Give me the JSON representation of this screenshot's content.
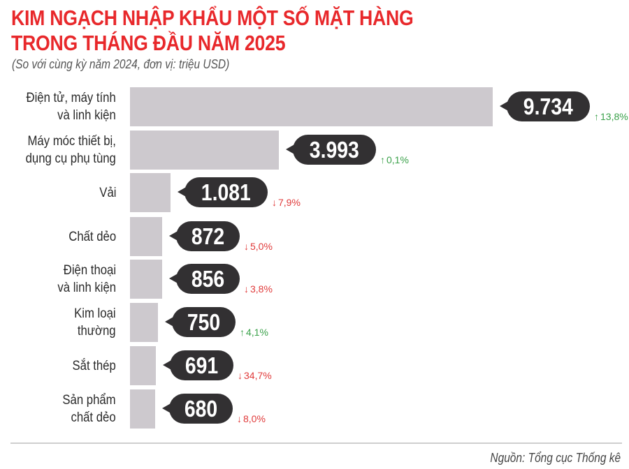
{
  "header": {
    "title_line1": "KIM NGẠCH NHẬP KHẨU MỘT SỐ MẶT HÀNG",
    "title_line2": "TRONG THÁNG ĐẦU NĂM 2025",
    "subtitle": "(So với cùng kỳ năm 2024, đơn vị: triệu USD)"
  },
  "footer": {
    "source": "Nguồn: Tổng cục Thống kê"
  },
  "colors": {
    "title": "#e8282b",
    "bar": "#cdc9ce",
    "bubble": "#323032",
    "up": "#3aa14a",
    "down": "#e03a3a"
  },
  "rows": [
    {
      "label": "Điện tử, máy tính\nvà linh kiện",
      "value": "9.734",
      "change": "13,8%",
      "direction": "up"
    },
    {
      "label": "Máy móc thiết bị,\ndụng cụ phụ tùng",
      "value": "3.993",
      "change": "0,1%",
      "direction": "up"
    },
    {
      "label": "Vải",
      "value": "1.081",
      "change": "7,9%",
      "direction": "down"
    },
    {
      "label": "Chất dẻo",
      "value": "872",
      "change": "5,0%",
      "direction": "down"
    },
    {
      "label": "Điện thoại\nvà linh kiện",
      "value": "856",
      "change": "3,8%",
      "direction": "down"
    },
    {
      "label": "Kim loại\nthường",
      "value": "750",
      "change": "4,1%",
      "direction": "up"
    },
    {
      "label": "Sắt thép",
      "value": "691",
      "change": "34,7%",
      "direction": "down"
    },
    {
      "label": "Sản phẩm\nchất dẻo",
      "value": "680",
      "change": "8,0%",
      "direction": "down"
    }
  ],
  "chart_data": {
    "type": "bar",
    "orientation": "horizontal",
    "title": "KIM NGẠCH NHẬP KHẨU MỘT SỐ MẶT HÀNG TRONG THÁNG ĐẦU NĂM 2025",
    "subtitle": "(So với cùng kỳ năm 2024, đơn vị: triệu USD)",
    "xlabel": "",
    "ylabel": "",
    "categories": [
      "Điện tử, máy tính và linh kiện",
      "Máy móc thiết bị, dụng cụ phụ tùng",
      "Vải",
      "Chất dẻo",
      "Điện thoại và linh kiện",
      "Kim loại thường",
      "Sắt thép",
      "Sản phẩm chất dẻo"
    ],
    "values": [
      9734,
      3993,
      1081,
      872,
      856,
      750,
      691,
      680
    ],
    "value_labels": [
      "9.734",
      "3.993",
      "1.081",
      "872",
      "856",
      "750",
      "691",
      "680"
    ],
    "yoy_change_percent": [
      13.8,
      0.1,
      -7.9,
      -5.0,
      -3.8,
      4.1,
      -34.7,
      -8.0
    ],
    "yoy_change_labels": [
      "↑13,8%",
      "↑0,1%",
      "↓7,9%",
      "↓5,0%",
      "↓3,8%",
      "↑4,1%",
      "↓34,7%",
      "↓8,0%"
    ],
    "unit": "triệu USD",
    "grid": false,
    "legend": null,
    "source": "Nguồn: Tổng cục Thống kê"
  }
}
